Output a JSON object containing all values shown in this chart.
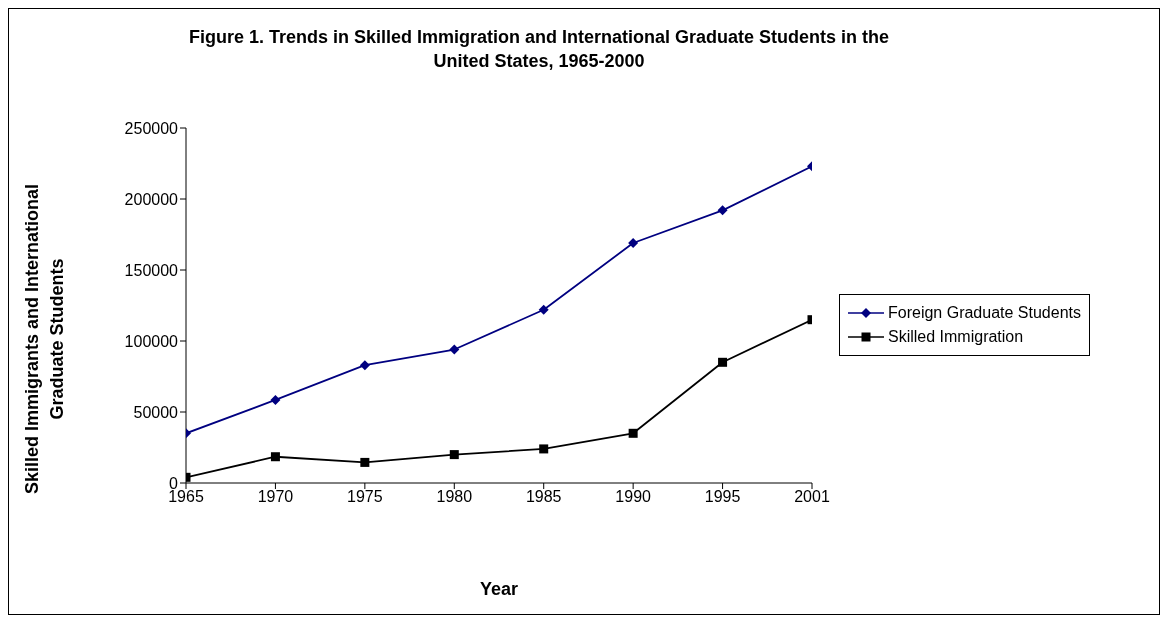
{
  "chart_data": {
    "type": "line",
    "title": "Figure 1. Trends in Skilled Immigration and International Graduate Students in the United States, 1965-2000",
    "xlabel": "Year",
    "ylabel": "Skilled Immigrants and International Graduate Students",
    "categories": [
      "1965",
      "1970",
      "1975",
      "1980",
      "1985",
      "1990",
      "1995",
      "2001"
    ],
    "series": [
      {
        "name": "Foreign Graduate Students",
        "color": "#000080",
        "marker": "diamond",
        "values": [
          35000,
          58500,
          83000,
          94000,
          122000,
          169000,
          192000,
          223000
        ]
      },
      {
        "name": "Skilled Immigration",
        "color": "#000000",
        "marker": "square",
        "values": [
          4000,
          18500,
          14500,
          20000,
          24000,
          35000,
          85000,
          115000
        ]
      }
    ],
    "ylim": [
      0,
      250000
    ],
    "yticks": [
      0,
      50000,
      100000,
      150000,
      200000,
      250000
    ],
    "grid": false,
    "legend": "right",
    "line_style": "solid"
  }
}
